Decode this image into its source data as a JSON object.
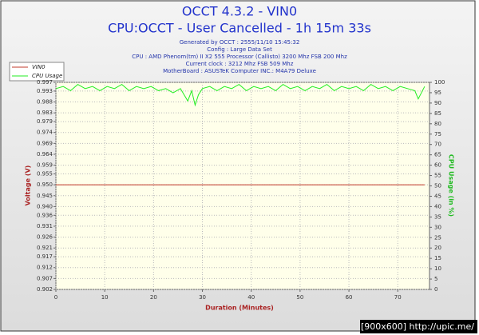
{
  "chart_data": {
    "type": "line",
    "title": "OCCT 4.3.2 - VIN0",
    "subtitle": "CPU:OCCT - User Cancelled - 1h 15m 33s",
    "info": [
      "Generated by OCCT : 2555/11/10 15:45:32",
      "Config : Large Data Set",
      "CPU : AMD Phenom(tm) II X2 555 Processor (Callisto) 3200 Mhz FSB 200 Mhz",
      "Current clock : 3212 Mhz FSB 509 Mhz",
      "MotherBoard : ASUSTeK Computer INC.: M4A79 Deluxe"
    ],
    "xlabel": "Duration (Minutes)",
    "ylabel": "Voltage (V)",
    "y2label": "CPU Usage (in %)",
    "watermark": "[900x600] http://upic.me/",
    "xlim": [
      0,
      76.5
    ],
    "xticks": [
      0,
      10,
      20,
      30,
      40,
      50,
      60,
      70
    ],
    "ylim": [
      0.902,
      0.997
    ],
    "yticks": [
      0.902,
      0.907,
      0.912,
      0.917,
      0.921,
      0.926,
      0.931,
      0.936,
      {
        "value": 0.94,
        "label": "0.940"
      },
      0.945,
      {
        "value": 0.95,
        "label": "0.950"
      },
      0.955,
      0.959,
      0.964,
      0.969,
      0.974,
      0.979,
      0.983,
      0.988,
      0.993,
      0.997
    ],
    "y2lim": [
      0,
      100
    ],
    "y2ticks": [
      0,
      5,
      10,
      15,
      20,
      25,
      30,
      35,
      40,
      45,
      50,
      55,
      60,
      65,
      70,
      75,
      80,
      85,
      90,
      95,
      100
    ],
    "grid": true,
    "legend": "top-left",
    "series": [
      {
        "name": "VIN0",
        "color": "#c0392b",
        "x": [
          0,
          75.5
        ],
        "values": [
          0.95,
          0.95
        ]
      },
      {
        "name": "CPU Usage",
        "color": "#22ee22",
        "axis": "y2",
        "x": [
          0,
          1.5,
          3,
          4.5,
          6,
          7.5,
          9,
          10.5,
          12,
          13.5,
          15,
          16.5,
          18,
          19.5,
          21,
          22.5,
          24,
          25.5,
          27,
          27.8,
          28.5,
          29.2,
          30,
          31.5,
          33,
          34.5,
          36,
          37.5,
          39,
          40.5,
          42,
          43.5,
          45,
          46.5,
          48,
          49.5,
          51,
          52.5,
          54,
          55.5,
          57,
          58.5,
          60,
          61.5,
          63,
          64.5,
          66,
          67.5,
          69,
          70.5,
          72,
          73.5,
          74.2,
          75.5
        ],
        "values": [
          97,
          98,
          96,
          99,
          97,
          98,
          96,
          98,
          97,
          99,
          96,
          98,
          97,
          98,
          96,
          97,
          95,
          97,
          91,
          96,
          89,
          94,
          97,
          98,
          96,
          98,
          97,
          99,
          96,
          98,
          97,
          98,
          96,
          99,
          97,
          98,
          96,
          98,
          97,
          99,
          96,
          98,
          97,
          98,
          96,
          99,
          97,
          98,
          96,
          98,
          97,
          96,
          92,
          98
        ]
      }
    ]
  }
}
